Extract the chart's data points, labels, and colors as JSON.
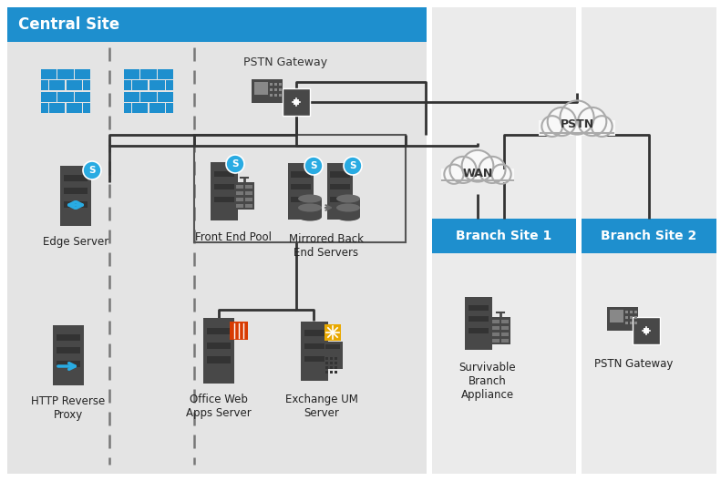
{
  "title": "Central Site",
  "title_bg": "#1e8fce",
  "title_text_color": "#ffffff",
  "bg_color": "#ffffff",
  "central_bg": "#e4e4e4",
  "branch_bg": "#ebebeb",
  "branch_header_bg": "#1e8fce",
  "branch_text_color": "#ffffff",
  "icon_dark": "#484848",
  "icon_mid": "#606060",
  "skype_color": "#29abe2",
  "office_red": "#d83b01",
  "exchange_orange": "#e8a800",
  "dashed_color": "#555555",
  "line_color": "#333333",
  "cloud_fill": "#f8f8f8",
  "cloud_edge": "#aaaaaa",
  "labels": {
    "central": "Central Site",
    "pstn_gw": "PSTN Gateway",
    "edge": "Edge Server",
    "front_end": "Front End Pool",
    "mirrored": "Mirrored Back\nEnd Servers",
    "http": "HTTP Reverse\nProxy",
    "office": "Office Web\nApps Server",
    "exchange": "Exchange UM\nServer",
    "wan": "WAN",
    "pstn": "PSTN",
    "branch1": "Branch Site 1",
    "branch2": "Branch Site 2",
    "survivable": "Survivable\nBranch\nAppliance",
    "pstn_gw2": "PSTN Gateway"
  },
  "layout": {
    "fig_w": 7.91,
    "fig_h": 5.28,
    "dpi": 100
  }
}
